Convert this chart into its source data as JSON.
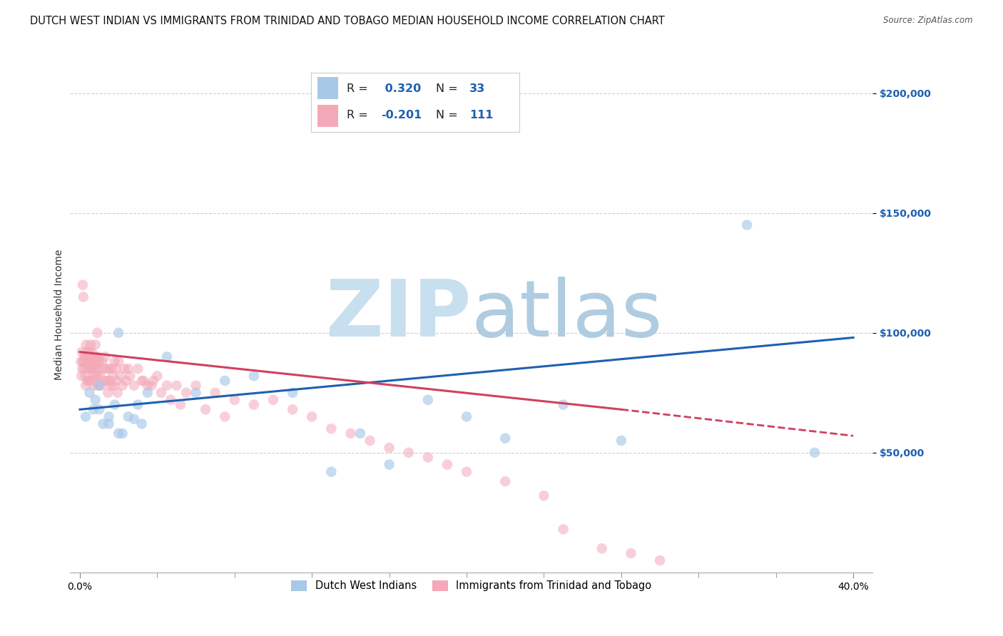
{
  "title": "DUTCH WEST INDIAN VS IMMIGRANTS FROM TRINIDAD AND TOBAGO MEDIAN HOUSEHOLD INCOME CORRELATION CHART",
  "source": "Source: ZipAtlas.com",
  "ylabel": "Median Household Income",
  "ytick_labels": [
    "$200,000",
    "$150,000",
    "$100,000",
    "$50,000"
  ],
  "ytick_values": [
    200000,
    150000,
    100000,
    50000
  ],
  "blue_label": "Dutch West Indians",
  "pink_label": "Immigrants from Trinidad and Tobago",
  "blue_R": 0.32,
  "blue_N": 33,
  "pink_R": -0.201,
  "pink_N": 111,
  "blue_color": "#a8c8e8",
  "pink_color": "#f4a8b8",
  "blue_line_color": "#2060b0",
  "pink_line_color": "#d04060",
  "blue_scatter_alpha": 0.65,
  "pink_scatter_alpha": 0.55,
  "blue_x": [
    0.3,
    0.5,
    0.7,
    0.8,
    1.0,
    1.2,
    1.5,
    1.8,
    2.0,
    2.2,
    2.5,
    3.0,
    3.5,
    4.5,
    6.0,
    7.5,
    9.0,
    11.0,
    13.0,
    14.5,
    16.0,
    18.0,
    20.0,
    22.0,
    25.0,
    28.0,
    34.5,
    38.0,
    1.0,
    1.5,
    2.0,
    2.8,
    3.2
  ],
  "blue_y": [
    65000,
    75000,
    68000,
    72000,
    78000,
    62000,
    65000,
    70000,
    100000,
    58000,
    65000,
    70000,
    75000,
    90000,
    75000,
    80000,
    82000,
    75000,
    42000,
    58000,
    45000,
    72000,
    65000,
    56000,
    70000,
    55000,
    145000,
    50000,
    68000,
    62000,
    58000,
    64000,
    62000
  ],
  "pink_x": [
    0.05,
    0.08,
    0.1,
    0.12,
    0.15,
    0.18,
    0.2,
    0.22,
    0.25,
    0.28,
    0.3,
    0.32,
    0.35,
    0.38,
    0.4,
    0.42,
    0.45,
    0.48,
    0.5,
    0.52,
    0.55,
    0.58,
    0.6,
    0.62,
    0.65,
    0.68,
    0.7,
    0.72,
    0.75,
    0.78,
    0.8,
    0.82,
    0.85,
    0.88,
    0.9,
    0.92,
    0.95,
    0.98,
    1.0,
    1.05,
    1.1,
    1.15,
    1.2,
    1.25,
    1.3,
    1.35,
    1.4,
    1.45,
    1.5,
    1.55,
    1.6,
    1.65,
    1.7,
    1.75,
    1.8,
    1.85,
    1.9,
    1.95,
    2.0,
    2.1,
    2.2,
    2.3,
    2.4,
    2.5,
    2.6,
    2.8,
    3.0,
    3.2,
    3.5,
    3.8,
    4.0,
    4.5,
    5.0,
    5.5,
    6.0,
    7.0,
    8.0,
    9.0,
    10.0,
    11.0,
    12.0,
    13.0,
    14.0,
    15.0,
    16.0,
    17.0,
    18.0,
    19.0,
    20.0,
    22.0,
    24.0,
    25.0,
    27.0,
    28.5,
    30.0,
    3.3,
    3.7,
    4.2,
    4.7,
    5.2,
    6.5,
    7.5,
    0.15,
    0.25,
    0.35,
    0.45,
    0.55,
    0.65,
    0.75,
    0.85,
    0.95
  ],
  "pink_y": [
    88000,
    82000,
    92000,
    85000,
    120000,
    115000,
    88000,
    85000,
    90000,
    82000,
    78000,
    95000,
    87000,
    80000,
    90000,
    85000,
    80000,
    92000,
    88000,
    85000,
    95000,
    90000,
    80000,
    92000,
    88000,
    85000,
    82000,
    78000,
    88000,
    85000,
    95000,
    90000,
    87000,
    82000,
    100000,
    88000,
    90000,
    85000,
    88000,
    82000,
    78000,
    88000,
    85000,
    80000,
    90000,
    85000,
    80000,
    75000,
    85000,
    80000,
    78000,
    85000,
    82000,
    78000,
    88000,
    85000,
    80000,
    75000,
    88000,
    82000,
    78000,
    85000,
    80000,
    85000,
    82000,
    78000,
    85000,
    80000,
    78000,
    80000,
    82000,
    78000,
    78000,
    75000,
    78000,
    75000,
    72000,
    70000,
    72000,
    68000,
    65000,
    60000,
    58000,
    55000,
    52000,
    50000,
    48000,
    45000,
    42000,
    38000,
    32000,
    18000,
    10000,
    8000,
    5000,
    80000,
    78000,
    75000,
    72000,
    70000,
    68000,
    65000,
    88000,
    90000,
    92000,
    87000,
    85000,
    90000,
    88000,
    82000,
    78000
  ],
  "ylim": [
    0,
    215000
  ],
  "xlim": [
    -0.5,
    41
  ],
  "grid_color": "#d0d0d0",
  "bg_color": "#ffffff",
  "title_fontsize": 10.5,
  "label_fontsize": 10,
  "tick_fontsize": 10
}
